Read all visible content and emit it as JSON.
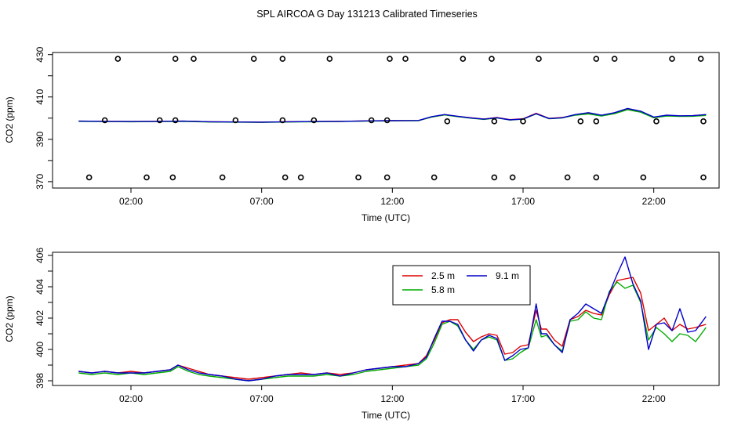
{
  "title": "SPL AIRCOA G  Day 131213  Calibrated Timeseries",
  "chart_data": [
    {
      "type": "line",
      "xlabel": "Time (UTC)",
      "ylabel": "CO2 (ppm)",
      "xlim": [
        -1.0,
        24.5
      ],
      "ylim": [
        367,
        431
      ],
      "xticks": [
        {
          "v": 2,
          "label": "02:00"
        },
        {
          "v": 7,
          "label": "07:00"
        },
        {
          "v": 12,
          "label": "12:00"
        },
        {
          "v": 17,
          "label": "17:00"
        },
        {
          "v": 22,
          "label": "22:00"
        }
      ],
      "yticks": [
        {
          "v": 370,
          "label": "370"
        },
        {
          "v": 380,
          "label": ""
        },
        {
          "v": 390,
          "label": "390"
        },
        {
          "v": 400,
          "label": ""
        },
        {
          "v": 410,
          "label": "410"
        },
        {
          "v": 420,
          "label": ""
        },
        {
          "v": 430,
          "label": "430"
        }
      ],
      "series": [
        {
          "color": "#dd0000",
          "x": [
            0,
            1,
            2,
            3,
            4,
            5,
            6,
            7,
            8,
            9,
            10,
            11,
            12,
            13,
            13.5,
            14,
            14.5,
            15,
            15.5,
            16,
            16.5,
            17,
            17.5,
            18,
            18.5,
            19,
            19.5,
            20,
            20.5,
            21,
            21.5,
            22,
            22.5,
            23,
            23.5,
            24
          ],
          "values": [
            398.6,
            398.5,
            398.4,
            398.5,
            398.6,
            398.3,
            398.2,
            398.1,
            398.3,
            398.4,
            398.5,
            398.7,
            398.8,
            398.9,
            400.6,
            401.6,
            400.8,
            400.2,
            399.6,
            400.3,
            399.3,
            399.7,
            402.3,
            399.9,
            400.3,
            401.6,
            402.3,
            401.3,
            402.4,
            404.3,
            403.2,
            400.4,
            401.3,
            401.0,
            401.2,
            401.6
          ]
        },
        {
          "color": "#00aa00",
          "x": [
            0,
            1,
            2,
            3,
            4,
            5,
            6,
            7,
            8,
            9,
            10,
            11,
            12,
            13,
            13.5,
            14,
            14.5,
            15,
            15.5,
            16,
            16.5,
            17,
            17.5,
            18,
            18.5,
            19,
            19.5,
            20,
            20.5,
            21,
            21.5,
            22,
            22.5,
            23,
            23.5,
            24
          ],
          "values": [
            398.5,
            398.4,
            398.3,
            398.4,
            398.5,
            398.2,
            398.1,
            398.0,
            398.2,
            398.3,
            398.4,
            398.6,
            398.7,
            398.8,
            400.5,
            401.5,
            400.7,
            400.0,
            399.4,
            400.1,
            399.1,
            399.5,
            402.0,
            399.7,
            400.1,
            401.4,
            402.0,
            401.0,
            402.1,
            404.0,
            402.8,
            400.2,
            401.0,
            400.8,
            400.9,
            401.3
          ]
        },
        {
          "color": "#0000cc",
          "x": [
            0,
            1,
            2,
            3,
            4,
            5,
            6,
            7,
            8,
            9,
            10,
            11,
            12,
            13,
            13.5,
            14,
            14.5,
            15,
            15.5,
            16,
            16.5,
            17,
            17.5,
            18,
            18.5,
            19,
            19.5,
            20,
            20.5,
            21,
            21.5,
            22,
            22.5,
            23,
            23.5,
            24
          ],
          "values": [
            398.6,
            398.5,
            398.4,
            398.5,
            398.6,
            398.3,
            398.2,
            398.1,
            398.3,
            398.4,
            398.5,
            398.7,
            398.8,
            398.9,
            400.7,
            401.7,
            400.9,
            400.1,
            399.5,
            400.2,
            399.2,
            399.6,
            402.1,
            399.8,
            400.2,
            401.7,
            402.6,
            401.4,
            402.6,
            404.6,
            403.3,
            400.5,
            401.4,
            401.1,
            401.2,
            401.7
          ]
        }
      ],
      "circles": [
        {
          "x": 1.5,
          "y": 428
        },
        {
          "x": 3.7,
          "y": 428
        },
        {
          "x": 4.4,
          "y": 428
        },
        {
          "x": 6.7,
          "y": 428
        },
        {
          "x": 7.8,
          "y": 428
        },
        {
          "x": 9.6,
          "y": 428
        },
        {
          "x": 11.9,
          "y": 428
        },
        {
          "x": 12.5,
          "y": 428
        },
        {
          "x": 14.7,
          "y": 428
        },
        {
          "x": 15.8,
          "y": 428
        },
        {
          "x": 17.6,
          "y": 428
        },
        {
          "x": 19.8,
          "y": 428
        },
        {
          "x": 20.5,
          "y": 428
        },
        {
          "x": 22.7,
          "y": 428
        },
        {
          "x": 23.8,
          "y": 428
        },
        {
          "x": 1.0,
          "y": 399
        },
        {
          "x": 3.1,
          "y": 399
        },
        {
          "x": 3.7,
          "y": 399
        },
        {
          "x": 6.0,
          "y": 399
        },
        {
          "x": 7.8,
          "y": 399
        },
        {
          "x": 9.0,
          "y": 399
        },
        {
          "x": 11.2,
          "y": 399
        },
        {
          "x": 11.8,
          "y": 399
        },
        {
          "x": 14.1,
          "y": 398.5
        },
        {
          "x": 15.9,
          "y": 398.5
        },
        {
          "x": 17.0,
          "y": 398.5
        },
        {
          "x": 19.2,
          "y": 398.5
        },
        {
          "x": 19.8,
          "y": 398.5
        },
        {
          "x": 22.1,
          "y": 398.5
        },
        {
          "x": 23.9,
          "y": 398.5
        },
        {
          "x": 0.4,
          "y": 372
        },
        {
          "x": 2.6,
          "y": 372
        },
        {
          "x": 3.6,
          "y": 372
        },
        {
          "x": 5.5,
          "y": 372
        },
        {
          "x": 7.9,
          "y": 372
        },
        {
          "x": 8.5,
          "y": 372
        },
        {
          "x": 10.7,
          "y": 372
        },
        {
          "x": 11.8,
          "y": 372
        },
        {
          "x": 13.6,
          "y": 372
        },
        {
          "x": 15.9,
          "y": 372
        },
        {
          "x": 16.6,
          "y": 372
        },
        {
          "x": 18.7,
          "y": 372
        },
        {
          "x": 19.8,
          "y": 372
        },
        {
          "x": 21.6,
          "y": 372
        },
        {
          "x": 23.9,
          "y": 372
        }
      ]
    },
    {
      "type": "line",
      "xlabel": "Time (UTC)",
      "ylabel": "CO2 (ppm)",
      "xlim": [
        -1.0,
        24.5
      ],
      "ylim": [
        397.7,
        406.2
      ],
      "xticks": [
        {
          "v": 2,
          "label": "02:00"
        },
        {
          "v": 7,
          "label": "07:00"
        },
        {
          "v": 12,
          "label": "12:00"
        },
        {
          "v": 17,
          "label": "17:00"
        },
        {
          "v": 22,
          "label": "22:00"
        }
      ],
      "yticks": [
        {
          "v": 398,
          "label": "398"
        },
        {
          "v": 399,
          "label": ""
        },
        {
          "v": 400,
          "label": "400"
        },
        {
          "v": 401,
          "label": ""
        },
        {
          "v": 402,
          "label": "402"
        },
        {
          "v": 403,
          "label": ""
        },
        {
          "v": 404,
          "label": "404"
        },
        {
          "v": 405,
          "label": ""
        },
        {
          "v": 406,
          "label": "406"
        }
      ],
      "legend": [
        {
          "name": "2.5 m",
          "color": "#dd0000"
        },
        {
          "name": "9.1 m",
          "color": "#0000cc"
        },
        {
          "name": "5.8 m",
          "color": "#00aa00"
        }
      ],
      "series": [
        {
          "name": "2.5 m",
          "color": "#dd0000",
          "x": [
            0,
            0.5,
            1,
            1.5,
            2,
            2.5,
            3,
            3.5,
            3.8,
            4.2,
            4.6,
            5,
            5.5,
            6,
            6.5,
            7,
            7.5,
            8,
            8.5,
            9,
            9.5,
            10,
            10.5,
            11,
            11.5,
            12,
            12.5,
            13,
            13.3,
            13.6,
            13.9,
            14.2,
            14.5,
            14.8,
            15.1,
            15.4,
            15.7,
            16,
            16.3,
            16.6,
            16.9,
            17.2,
            17.5,
            17.7,
            17.9,
            18.2,
            18.5,
            18.8,
            19.1,
            19.4,
            19.7,
            20,
            20.3,
            20.6,
            20.9,
            21.2,
            21.5,
            21.8,
            22.1,
            22.4,
            22.7,
            23,
            23.3,
            23.6,
            24
          ],
          "values": [
            398.6,
            398.5,
            398.6,
            398.5,
            398.6,
            398.5,
            398.6,
            398.7,
            399.0,
            398.8,
            398.6,
            398.4,
            398.3,
            398.2,
            398.1,
            398.2,
            398.3,
            398.4,
            398.5,
            398.4,
            398.5,
            398.4,
            398.5,
            398.7,
            398.8,
            398.9,
            399.0,
            399.1,
            399.6,
            400.6,
            401.7,
            401.9,
            401.9,
            401.1,
            400.5,
            400.8,
            401.0,
            400.9,
            399.7,
            399.8,
            400.2,
            400.3,
            402.5,
            401.3,
            401.3,
            400.6,
            400.2,
            401.9,
            402.1,
            402.5,
            402.3,
            402.2,
            403.5,
            404.4,
            404.5,
            404.6,
            403.6,
            401.2,
            401.6,
            402.0,
            401.2,
            401.6,
            401.3,
            401.4,
            401.6
          ]
        },
        {
          "name": "5.8 m",
          "color": "#00aa00",
          "x": [
            0,
            0.5,
            1,
            1.5,
            2,
            2.5,
            3,
            3.5,
            3.8,
            4.2,
            4.6,
            5,
            5.5,
            6,
            6.5,
            7,
            7.5,
            8,
            8.5,
            9,
            9.5,
            10,
            10.5,
            11,
            11.5,
            12,
            12.5,
            13,
            13.3,
            13.6,
            13.9,
            14.2,
            14.5,
            14.8,
            15.1,
            15.4,
            15.7,
            16,
            16.3,
            16.6,
            16.9,
            17.2,
            17.5,
            17.7,
            17.9,
            18.2,
            18.5,
            18.8,
            19.1,
            19.4,
            19.7,
            20,
            20.3,
            20.6,
            20.9,
            21.2,
            21.5,
            21.8,
            22.1,
            22.4,
            22.7,
            23,
            23.3,
            23.6,
            24
          ],
          "values": [
            398.5,
            398.4,
            398.5,
            398.4,
            398.5,
            398.4,
            398.5,
            398.6,
            398.9,
            398.6,
            398.4,
            398.3,
            398.2,
            398.1,
            398.0,
            398.1,
            398.2,
            398.3,
            398.3,
            398.3,
            398.4,
            398.3,
            398.4,
            398.6,
            398.7,
            398.8,
            398.9,
            399.0,
            399.4,
            400.4,
            401.6,
            401.8,
            401.5,
            400.6,
            400.0,
            400.6,
            400.8,
            400.6,
            399.3,
            399.4,
            399.8,
            400.1,
            401.9,
            400.8,
            400.9,
            400.3,
            399.9,
            401.8,
            401.9,
            402.4,
            402.0,
            401.9,
            403.7,
            404.3,
            403.9,
            404.1,
            403.0,
            400.6,
            401.4,
            401.0,
            400.5,
            401.0,
            400.9,
            400.5,
            401.4
          ]
        },
        {
          "name": "9.1 m",
          "color": "#0000cc",
          "x": [
            0,
            0.5,
            1,
            1.5,
            2,
            2.5,
            3,
            3.5,
            3.8,
            4.2,
            4.6,
            5,
            5.5,
            6,
            6.5,
            7,
            7.5,
            8,
            8.5,
            9,
            9.5,
            10,
            10.5,
            11,
            11.5,
            12,
            12.5,
            13,
            13.3,
            13.6,
            13.9,
            14.2,
            14.5,
            14.8,
            15.1,
            15.4,
            15.7,
            16,
            16.3,
            16.6,
            16.9,
            17.2,
            17.5,
            17.7,
            17.9,
            18.2,
            18.5,
            18.8,
            19.1,
            19.4,
            19.7,
            20,
            20.3,
            20.6,
            20.9,
            21.2,
            21.5,
            21.8,
            22.1,
            22.4,
            22.7,
            23,
            23.3,
            23.6,
            24
          ],
          "values": [
            398.6,
            398.5,
            398.6,
            398.5,
            398.5,
            398.5,
            398.6,
            398.7,
            399.0,
            398.7,
            398.5,
            398.4,
            398.3,
            398.1,
            398.0,
            398.1,
            398.3,
            398.4,
            398.4,
            398.4,
            398.5,
            398.3,
            398.5,
            398.7,
            398.8,
            398.9,
            398.9,
            399.1,
            399.5,
            400.7,
            401.8,
            401.8,
            401.6,
            400.6,
            399.9,
            400.6,
            400.9,
            400.7,
            399.3,
            399.6,
            400.0,
            400.1,
            402.9,
            401.0,
            401.0,
            400.3,
            399.8,
            401.9,
            402.3,
            402.9,
            402.6,
            402.3,
            403.6,
            404.8,
            405.9,
            404.2,
            403.1,
            400.0,
            401.6,
            401.7,
            401.2,
            402.6,
            401.1,
            401.2,
            402.1
          ]
        }
      ]
    }
  ]
}
